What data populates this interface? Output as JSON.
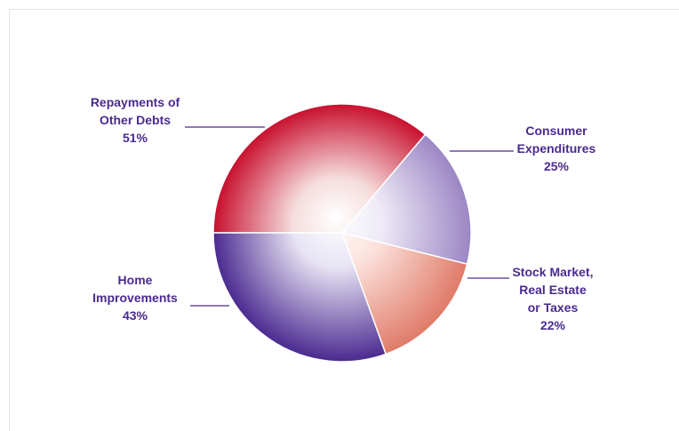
{
  "chart_data": {
    "type": "pie",
    "slices": [
      {
        "label": [
          "Repayments of",
          "Other Debts"
        ],
        "pct": "51%",
        "value": 51,
        "base": "#c8102e",
        "light": "#f5dcdc"
      },
      {
        "label": [
          "Consumer",
          "Expenditures"
        ],
        "pct": "25%",
        "value": 25,
        "base": "#9b86c4",
        "light": "#eeeaf6"
      },
      {
        "label": [
          "Stock Market,",
          "Real Estate",
          "or Taxes"
        ],
        "pct": "22%",
        "value": 22,
        "base": "#e07a68",
        "light": "#fbe2dc"
      },
      {
        "label": [
          "Home",
          "Improvements"
        ],
        "pct": "43%",
        "value": 43,
        "base": "#4a2a90",
        "light": "#e8e4f4"
      }
    ]
  }
}
